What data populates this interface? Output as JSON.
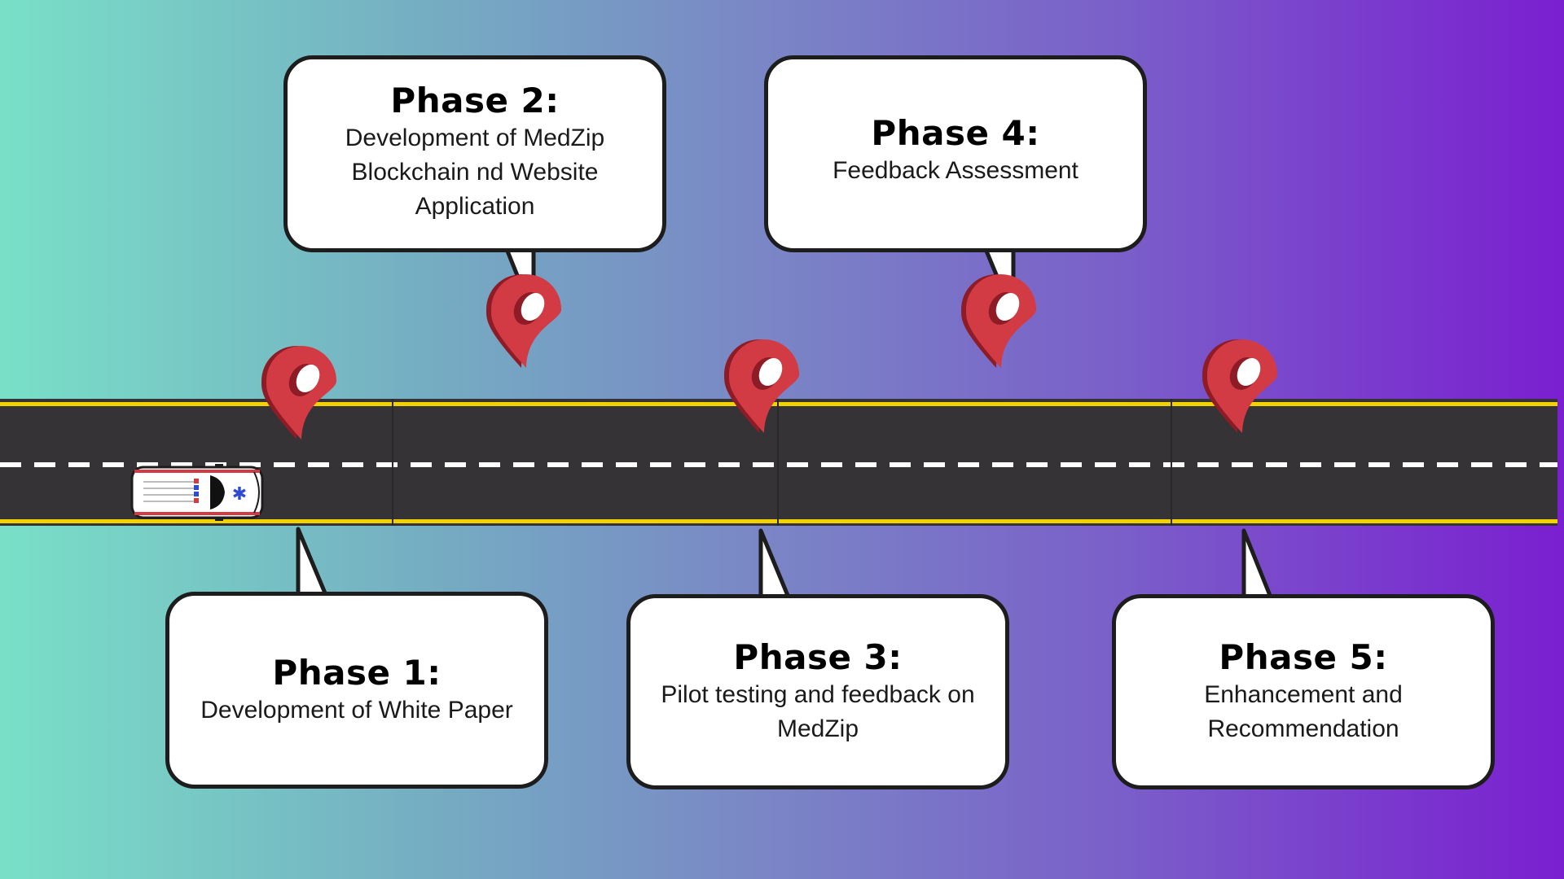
{
  "colors": {
    "road": "#353335",
    "road_edge": "#f2d200",
    "lane_dash": "#ffffff",
    "pin_front": "#d23a44",
    "pin_back": "#8e1c27",
    "bubble_fill": "#ffffff",
    "bubble_border": "#1d1d1d"
  },
  "icons": {
    "pin": "map-pin-icon",
    "vehicle": "ambulance-icon"
  },
  "phases": [
    {
      "title": "Phase 1:",
      "lines": [
        "Development of White Paper"
      ]
    },
    {
      "title": "Phase 2:",
      "lines": [
        "Development of MedZip",
        "Blockchain nd Website",
        "Application"
      ]
    },
    {
      "title": "Phase 3:",
      "lines": [
        "Pilot testing and feedback on",
        "MedZip"
      ]
    },
    {
      "title": "Phase 4:",
      "lines": [
        "Feedback Assessment"
      ]
    },
    {
      "title": "Phase 5:",
      "lines": [
        "Enhancement and",
        "Recommendation"
      ]
    }
  ]
}
